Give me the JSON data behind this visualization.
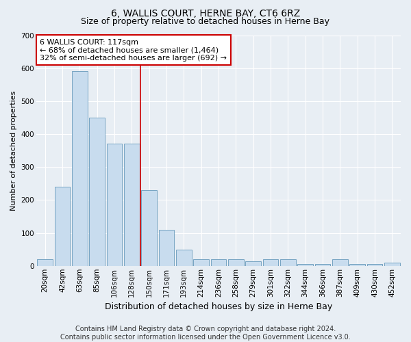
{
  "title": "6, WALLIS COURT, HERNE BAY, CT6 6RZ",
  "subtitle": "Size of property relative to detached houses in Herne Bay",
  "xlabel": "Distribution of detached houses by size in Herne Bay",
  "ylabel": "Number of detached properties",
  "categories": [
    "20sqm",
    "42sqm",
    "63sqm",
    "85sqm",
    "106sqm",
    "128sqm",
    "150sqm",
    "171sqm",
    "193sqm",
    "214sqm",
    "236sqm",
    "258sqm",
    "279sqm",
    "301sqm",
    "322sqm",
    "344sqm",
    "366sqm",
    "387sqm",
    "409sqm",
    "430sqm",
    "452sqm"
  ],
  "values": [
    20,
    240,
    590,
    450,
    370,
    370,
    230,
    110,
    50,
    20,
    20,
    20,
    15,
    20,
    20,
    5,
    5,
    20,
    5,
    5,
    10
  ],
  "vline_x": 5.5,
  "bar_color": "#c8dcee",
  "bar_edge_color": "#6699bb",
  "annotation_text": "6 WALLIS COURT: 117sqm\n← 68% of detached houses are smaller (1,464)\n32% of semi-detached houses are larger (692) →",
  "annotation_box_facecolor": "#ffffff",
  "annotation_box_edgecolor": "#cc0000",
  "vline_color": "#cc0000",
  "footer_text": "Contains HM Land Registry data © Crown copyright and database right 2024.\nContains public sector information licensed under the Open Government Licence v3.0.",
  "ylim": [
    0,
    700
  ],
  "yticks": [
    0,
    100,
    200,
    300,
    400,
    500,
    600,
    700
  ],
  "background_color": "#e8eef4",
  "plot_bg_color": "#e8eef4",
  "grid_color": "#ffffff",
  "title_fontsize": 10,
  "subtitle_fontsize": 9,
  "xlabel_fontsize": 9,
  "ylabel_fontsize": 8,
  "tick_fontsize": 7.5,
  "footer_fontsize": 7,
  "annot_fontsize": 8
}
